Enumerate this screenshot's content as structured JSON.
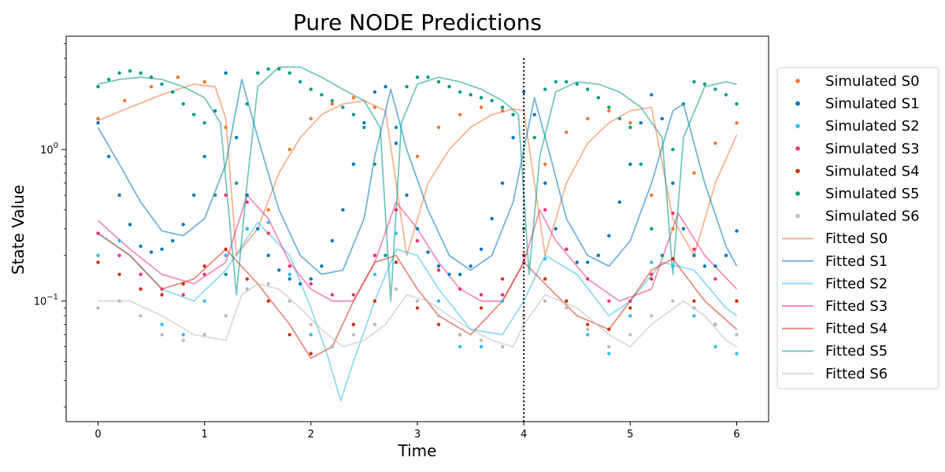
{
  "chart_data": {
    "type": "scatter",
    "title": "Pure NODE Predictions",
    "xlabel": "Time",
    "ylabel": "State Value",
    "xlim": [
      -0.3,
      6.3
    ],
    "ylim": [
      0.016,
      5.6
    ],
    "yscale": "log",
    "xticks": [
      0,
      1,
      2,
      3,
      4,
      5,
      6
    ],
    "yticks": [
      {
        "value": 0.1,
        "base": "10",
        "exp": "−1"
      },
      {
        "value": 1,
        "base": "10",
        "exp": "0"
      }
    ],
    "vline": {
      "x": 4,
      "style": "dotted"
    },
    "legend_position": "outside right",
    "colors": {
      "S0": "#EE7733",
      "S1": "#0077BB",
      "S2": "#33BBEE",
      "S3": "#EE3377",
      "S4": "#CC3311",
      "S5": "#009988",
      "S6": "#BBBBBB"
    },
    "series": [
      {
        "name": "Simulated S0",
        "kind": "points",
        "color": "#EE7733",
        "x": [
          0,
          0.25,
          0.5,
          0.75,
          1.0,
          1.2,
          1.4,
          1.6,
          1.8,
          2.0,
          2.2,
          2.4,
          2.6,
          2.8,
          3.0,
          3.2,
          3.4,
          3.6,
          3.8,
          4.0,
          4.2,
          4.4,
          4.6,
          4.8,
          5.0,
          5.2,
          5.4,
          5.6,
          5.8,
          6.0
        ],
        "y": [
          1.6,
          2.1,
          2.6,
          3.0,
          2.8,
          1.4,
          0.3,
          0.4,
          1.0,
          1.6,
          2.0,
          2.2,
          1.9,
          0.4,
          0.9,
          1.4,
          1.7,
          1.9,
          1.8,
          0.2,
          0.8,
          1.3,
          1.6,
          1.8,
          1.5,
          0.5,
          0.3,
          0.7,
          1.1,
          1.5
        ]
      },
      {
        "name": "Simulated S1",
        "kind": "points",
        "color": "#0077BB",
        "x": [
          0,
          0.1,
          0.2,
          0.3,
          0.4,
          0.5,
          0.6,
          0.7,
          0.8,
          0.9,
          1.0,
          1.1,
          1.2,
          1.3,
          1.4,
          1.5,
          1.6,
          1.7,
          1.8,
          1.9,
          2.0,
          2.1,
          2.2,
          2.3,
          2.4,
          2.5,
          2.6,
          2.7,
          2.8,
          2.9,
          3.0,
          3.1,
          3.2,
          3.3,
          3.4,
          3.5,
          3.6,
          3.7,
          3.8,
          3.9,
          4.0,
          4.1,
          4.2,
          4.3,
          4.4,
          4.5,
          4.6,
          4.7,
          4.8,
          4.9,
          5.0,
          5.1,
          5.2,
          5.3,
          5.4,
          5.5,
          5.6,
          5.7,
          5.8,
          5.9,
          6.0
        ],
        "y": [
          1.5,
          0.9,
          0.5,
          0.32,
          0.23,
          0.21,
          0.22,
          0.25,
          0.32,
          0.5,
          0.9,
          1.8,
          3.2,
          1.2,
          0.5,
          0.3,
          0.2,
          0.16,
          0.14,
          0.13,
          0.14,
          0.17,
          0.25,
          0.4,
          0.8,
          1.5,
          2.4,
          2.6,
          1.1,
          0.5,
          0.3,
          0.21,
          0.17,
          0.15,
          0.15,
          0.17,
          0.22,
          0.35,
          0.6,
          1.2,
          2.4,
          1.7,
          0.6,
          0.3,
          0.22,
          0.18,
          0.18,
          0.2,
          0.27,
          0.45,
          0.8,
          1.5,
          2.3,
          1.6,
          0.6,
          0.3,
          0.2,
          0.17,
          0.17,
          0.2,
          0.29
        ]
      },
      {
        "name": "Simulated S2",
        "kind": "points",
        "color": "#33BBEE",
        "x": [
          0,
          0.2,
          0.4,
          0.6,
          0.8,
          1.0,
          1.2,
          1.4,
          1.6,
          1.8,
          2.0,
          2.2,
          2.4,
          2.6,
          2.8,
          3.0,
          3.2,
          3.4,
          3.6,
          3.8,
          4.0,
          4.2,
          4.4,
          4.6,
          4.8,
          5.0,
          5.2,
          5.4,
          5.6,
          5.8,
          6.0
        ],
        "y": [
          0.2,
          0.25,
          0.12,
          0.07,
          0.06,
          0.1,
          0.2,
          0.3,
          0.33,
          0.15,
          0.06,
          0.05,
          0.07,
          0.15,
          0.28,
          0.25,
          0.1,
          0.05,
          0.05,
          0.1,
          0.2,
          0.19,
          0.1,
          0.06,
          0.045,
          0.08,
          0.18,
          0.17,
          0.08,
          0.05,
          0.045
        ]
      },
      {
        "name": "Simulated S3",
        "kind": "points",
        "color": "#EE3377",
        "x": [
          0,
          0.2,
          0.4,
          0.6,
          0.8,
          1.0,
          1.2,
          1.4,
          1.6,
          1.8,
          2.0,
          2.2,
          2.4,
          2.6,
          2.8,
          3.0,
          3.2,
          3.4,
          3.6,
          3.8,
          4.0,
          4.2,
          4.4,
          4.6,
          4.8,
          5.0,
          5.2,
          5.4,
          5.6,
          5.8,
          6.0
        ],
        "y": [
          0.28,
          0.2,
          0.15,
          0.12,
          0.11,
          0.15,
          0.5,
          0.45,
          0.28,
          0.17,
          0.13,
          0.11,
          0.11,
          0.2,
          0.4,
          0.25,
          0.16,
          0.12,
          0.11,
          0.11,
          0.18,
          0.4,
          0.22,
          0.14,
          0.1,
          0.1,
          0.15,
          0.38,
          0.22,
          0.14,
          0.1
        ]
      },
      {
        "name": "Simulated S4",
        "kind": "points",
        "color": "#CC3311",
        "x": [
          0,
          0.2,
          0.4,
          0.6,
          0.8,
          1.0,
          1.2,
          1.4,
          1.6,
          1.8,
          2.0,
          2.2,
          2.4,
          2.6,
          2.8,
          3.0,
          3.2,
          3.4,
          3.6,
          3.8,
          4.0,
          4.2,
          4.4,
          4.6,
          4.8,
          5.0,
          5.2,
          5.4,
          5.6,
          5.8,
          6.0
        ],
        "y": [
          0.18,
          0.15,
          0.12,
          0.11,
          0.13,
          0.17,
          0.22,
          0.14,
          0.1,
          0.06,
          0.045,
          0.05,
          0.07,
          0.1,
          0.18,
          0.09,
          0.07,
          0.06,
          0.09,
          0.14,
          0.2,
          0.14,
          0.1,
          0.07,
          0.065,
          0.09,
          0.14,
          0.19,
          0.1,
          0.07,
          0.1
        ]
      },
      {
        "name": "Simulated S5",
        "kind": "points",
        "color": "#009988",
        "x": [
          0,
          0.1,
          0.2,
          0.3,
          0.4,
          0.5,
          0.6,
          0.7,
          0.8,
          0.9,
          1.0,
          1.1,
          1.2,
          1.3,
          1.4,
          1.5,
          1.6,
          1.7,
          1.8,
          1.9,
          2.0,
          2.1,
          2.2,
          2.3,
          2.4,
          2.5,
          2.6,
          2.7,
          2.8,
          2.9,
          3.0,
          3.1,
          3.2,
          3.3,
          3.4,
          3.5,
          3.6,
          3.7,
          3.8,
          3.9,
          4.0,
          4.1,
          4.2,
          4.3,
          4.4,
          4.5,
          4.6,
          4.7,
          4.8,
          4.9,
          5.0,
          5.1,
          5.2,
          5.3,
          5.4,
          5.5,
          5.6,
          5.7,
          5.8,
          5.9,
          6.0
        ],
        "y": [
          2.6,
          2.9,
          3.2,
          3.3,
          3.2,
          3.0,
          2.7,
          2.4,
          2.0,
          1.7,
          1.5,
          0.5,
          0.15,
          0.6,
          2.0,
          3.2,
          3.4,
          3.4,
          3.2,
          2.8,
          2.5,
          2.3,
          2.1,
          1.9,
          1.7,
          1.4,
          0.8,
          0.2,
          1.4,
          2.6,
          3.0,
          3.0,
          2.8,
          2.6,
          2.4,
          2.3,
          2.2,
          2.1,
          1.9,
          1.7,
          0.3,
          1.2,
          2.5,
          2.8,
          2.8,
          2.7,
          2.5,
          2.2,
          1.9,
          1.6,
          1.4,
          0.8,
          0.3,
          0.2,
          1.0,
          2.0,
          2.8,
          2.7,
          2.5,
          2.3,
          2.0
        ]
      },
      {
        "name": "Simulated S6",
        "kind": "points",
        "color": "#BBBBBB",
        "x": [
          0,
          0.2,
          0.4,
          0.6,
          0.8,
          1.0,
          1.2,
          1.4,
          1.6,
          1.8,
          2.0,
          2.2,
          2.4,
          2.6,
          2.8,
          3.0,
          3.2,
          3.4,
          3.6,
          3.8,
          4.0,
          4.2,
          4.4,
          4.6,
          4.8,
          5.0,
          5.2,
          5.4,
          5.6,
          5.8,
          6.0
        ],
        "y": [
          0.09,
          0.1,
          0.08,
          0.06,
          0.055,
          0.06,
          0.08,
          0.12,
          0.13,
          0.1,
          0.07,
          0.05,
          0.06,
          0.07,
          0.12,
          0.1,
          0.08,
          0.06,
          0.055,
          0.05,
          0.08,
          0.1,
          0.09,
          0.065,
          0.05,
          0.06,
          0.08,
          0.1,
          0.09,
          0.07,
          0.06
        ]
      },
      {
        "name": "Fitted S0",
        "kind": "line",
        "color": "#EE7733",
        "x": [
          0,
          0.3,
          0.6,
          0.9,
          1.1,
          1.2,
          1.3,
          1.5,
          1.7,
          1.9,
          2.1,
          2.3,
          2.5,
          2.7,
          2.9,
          3.1,
          3.3,
          3.5,
          3.7,
          3.9,
          4.0,
          4.2,
          4.4,
          4.6,
          4.8,
          5.0,
          5.2,
          5.4,
          5.6,
          5.8,
          6.0
        ],
        "y": [
          1.55,
          1.9,
          2.3,
          2.7,
          2.6,
          1.6,
          0.2,
          0.3,
          0.7,
          1.2,
          1.7,
          2.0,
          2.1,
          1.8,
          0.2,
          0.6,
          1.0,
          1.4,
          1.7,
          1.85,
          1.8,
          0.2,
          0.6,
          1.1,
          1.5,
          1.8,
          1.9,
          0.35,
          0.2,
          0.6,
          1.25
        ]
      },
      {
        "name": "Fitted S1",
        "kind": "line",
        "color": "#0077BB",
        "x": [
          0,
          0.2,
          0.4,
          0.6,
          0.8,
          1.0,
          1.2,
          1.35,
          1.5,
          1.7,
          1.9,
          2.1,
          2.3,
          2.5,
          2.6,
          2.75,
          2.9,
          3.1,
          3.3,
          3.5,
          3.7,
          3.9,
          4.0,
          4.1,
          4.25,
          4.4,
          4.6,
          4.8,
          5.0,
          5.2,
          5.4,
          5.5,
          5.7,
          5.9,
          6.0
        ],
        "y": [
          1.4,
          0.8,
          0.45,
          0.29,
          0.27,
          0.35,
          0.8,
          2.9,
          1.2,
          0.4,
          0.2,
          0.15,
          0.16,
          0.35,
          0.9,
          2.5,
          1.0,
          0.4,
          0.2,
          0.16,
          0.2,
          0.45,
          1.0,
          2.2,
          0.9,
          0.35,
          0.2,
          0.17,
          0.25,
          0.6,
          1.8,
          2.0,
          0.6,
          0.23,
          0.17
        ]
      },
      {
        "name": "Fitted S2",
        "kind": "line",
        "color": "#33BBEE",
        "x": [
          0,
          0.3,
          0.6,
          0.9,
          1.2,
          1.5,
          1.8,
          2.0,
          2.15,
          2.28,
          2.4,
          2.6,
          2.8,
          3.0,
          3.2,
          3.5,
          3.8,
          4.0,
          4.2,
          4.5,
          4.8,
          5.0,
          5.3,
          5.6,
          5.9,
          6.0
        ],
        "y": [
          0.28,
          0.2,
          0.12,
          0.1,
          0.16,
          0.33,
          0.2,
          0.09,
          0.045,
          0.022,
          0.04,
          0.1,
          0.22,
          0.2,
          0.12,
          0.065,
          0.06,
          0.1,
          0.2,
          0.15,
          0.08,
          0.1,
          0.18,
          0.16,
          0.09,
          0.08
        ]
      },
      {
        "name": "Fitted S3",
        "kind": "line",
        "color": "#EE3377",
        "x": [
          0,
          0.3,
          0.6,
          0.9,
          1.2,
          1.4,
          1.6,
          1.8,
          2.0,
          2.2,
          2.4,
          2.6,
          2.8,
          3.0,
          3.2,
          3.4,
          3.6,
          3.8,
          4.0,
          4.15,
          4.3,
          4.6,
          4.9,
          5.2,
          5.45,
          5.7,
          6.0
        ],
        "y": [
          0.34,
          0.22,
          0.15,
          0.13,
          0.18,
          0.5,
          0.35,
          0.18,
          0.12,
          0.1,
          0.1,
          0.18,
          0.45,
          0.3,
          0.18,
          0.12,
          0.1,
          0.1,
          0.18,
          0.4,
          0.25,
          0.14,
          0.1,
          0.12,
          0.38,
          0.2,
          0.12
        ]
      },
      {
        "name": "Fitted S4",
        "kind": "line",
        "color": "#CC3311",
        "x": [
          0,
          0.3,
          0.6,
          0.9,
          1.2,
          1.5,
          1.8,
          2.0,
          2.2,
          2.4,
          2.6,
          2.8,
          3.0,
          3.2,
          3.5,
          3.8,
          4.0,
          4.2,
          4.5,
          4.8,
          5.0,
          5.2,
          5.4,
          5.7,
          6.0
        ],
        "y": [
          0.28,
          0.2,
          0.12,
          0.14,
          0.22,
          0.13,
          0.07,
          0.042,
          0.05,
          0.1,
          0.18,
          0.2,
          0.12,
          0.08,
          0.06,
          0.1,
          0.18,
          0.13,
          0.08,
          0.065,
          0.1,
          0.16,
          0.19,
          0.1,
          0.065
        ]
      },
      {
        "name": "Fitted S5",
        "kind": "line",
        "color": "#009988",
        "x": [
          0,
          0.2,
          0.4,
          0.6,
          0.8,
          1.0,
          1.15,
          1.3,
          1.4,
          1.5,
          1.7,
          1.9,
          2.1,
          2.3,
          2.5,
          2.65,
          2.75,
          2.85,
          3.0,
          3.2,
          3.4,
          3.6,
          3.8,
          3.95,
          4.05,
          4.15,
          4.3,
          4.5,
          4.7,
          4.9,
          5.1,
          5.3,
          5.4,
          5.5,
          5.7,
          5.9,
          6.0
        ],
        "y": [
          2.7,
          2.9,
          3.0,
          2.9,
          2.6,
          2.2,
          1.5,
          0.11,
          0.6,
          2.6,
          3.5,
          3.5,
          3.0,
          2.5,
          2.1,
          1.4,
          0.1,
          1.5,
          2.7,
          3.0,
          2.8,
          2.5,
          2.1,
          1.7,
          0.15,
          0.9,
          2.4,
          2.8,
          2.7,
          2.4,
          1.9,
          1.2,
          0.15,
          1.2,
          2.6,
          2.8,
          2.7
        ]
      },
      {
        "name": "Fitted S6",
        "kind": "line",
        "color": "#BBBBBB",
        "x": [
          0,
          0.3,
          0.6,
          0.9,
          1.2,
          1.35,
          1.5,
          1.7,
          1.9,
          2.1,
          2.3,
          2.5,
          2.7,
          2.9,
          3.1,
          3.3,
          3.5,
          3.7,
          3.9,
          4.0,
          4.2,
          4.5,
          4.8,
          5.0,
          5.2,
          5.5,
          5.7,
          5.9,
          6.0
        ],
        "y": [
          0.1,
          0.1,
          0.08,
          0.06,
          0.055,
          0.11,
          0.13,
          0.12,
          0.09,
          0.065,
          0.05,
          0.055,
          0.07,
          0.11,
          0.1,
          0.08,
          0.065,
          0.055,
          0.05,
          0.07,
          0.11,
          0.09,
          0.06,
          0.05,
          0.07,
          0.1,
          0.08,
          0.055,
          0.05
        ]
      }
    ]
  }
}
